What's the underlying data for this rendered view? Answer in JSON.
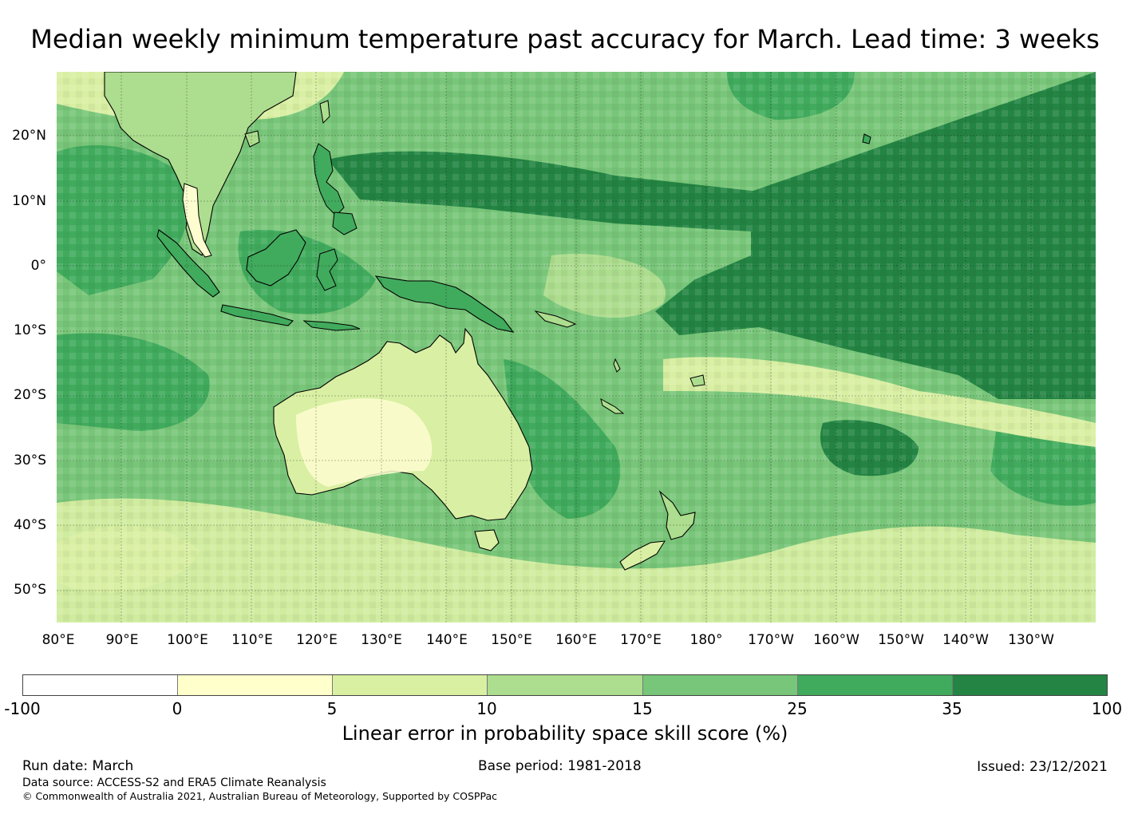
{
  "title": "Median weekly minimum temperature past accuracy for March. Lead time: 3 weeks",
  "map": {
    "lon_labels": [
      "80°E",
      "90°E",
      "100°E",
      "110°E",
      "120°E",
      "130°E",
      "140°E",
      "150°E",
      "160°E",
      "170°E",
      "180°",
      "170°W",
      "160°W",
      "150°W",
      "140°W",
      "130°W"
    ],
    "lat_labels": [
      "20°N",
      "10°N",
      "0°",
      "10°S",
      "20°S",
      "30°S",
      "40°S",
      "50°S"
    ],
    "lon_range": [
      80,
      240
    ],
    "lat_range": [
      -55,
      30
    ],
    "palette": {
      "white": "#ffffff",
      "pale": "#fdfdd0",
      "lightyellowgreen": "#d9efa3",
      "lightgreen": "#addd8e",
      "green": "#78c679",
      "midgreen": "#41ab5d",
      "dark": "#238443"
    }
  },
  "colorbar": {
    "ticks": [
      "-100",
      "0",
      "5",
      "10",
      "15",
      "25",
      "35",
      "100"
    ],
    "colors": [
      "#ffffff",
      "#ffffcc",
      "#d9f0a3",
      "#addd8e",
      "#78c679",
      "#41ab5d",
      "#238443"
    ],
    "label": "Linear error in probability space skill score (%)"
  },
  "footer": {
    "run_date": "Run date: March",
    "base_period": "Base period: 1981-2018",
    "issued": "Issued: 23/12/2021",
    "data_source": "Data source: ACCESS-S2 and ERA5 Climate Reanalysis",
    "copyright": "© Commonwealth of Australia 2021, Australian Bureau of Meteorology, Supported by COSPPac"
  }
}
